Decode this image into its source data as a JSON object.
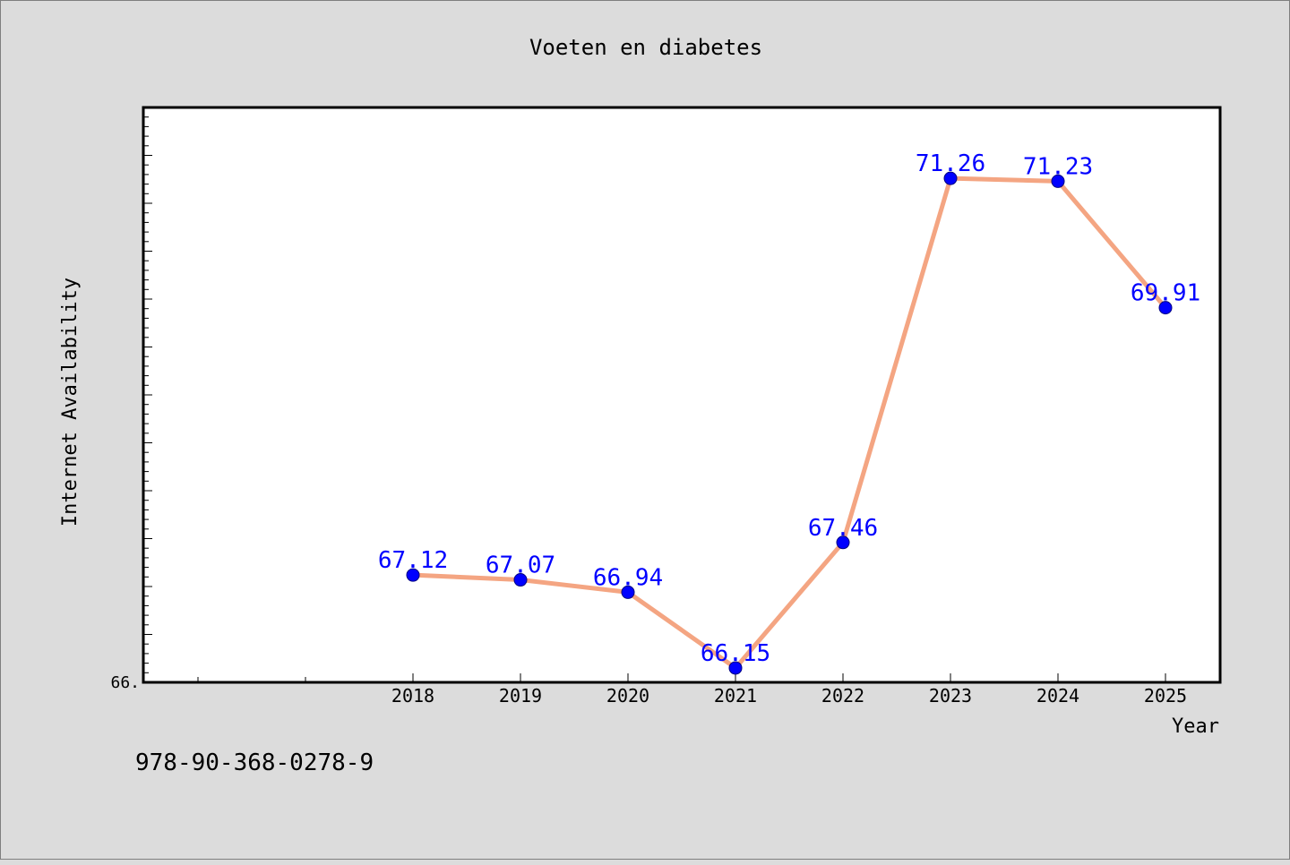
{
  "chart_data": {
    "type": "line",
    "title": "Voeten en diabetes",
    "xlabel": "Year",
    "ylabel": "Internet Availability",
    "x": [
      "2018",
      "2019",
      "2020",
      "2021",
      "2022",
      "2023",
      "2024",
      "2025"
    ],
    "series": [
      {
        "values": [
          67.12,
          67.07,
          66.94,
          66.15,
          67.46,
          71.26,
          71.23,
          69.91
        ],
        "data_labels": [
          "67.12",
          "67.07",
          "66.94",
          "66.15",
          "67.46",
          "71.26",
          "71.23",
          "69.91"
        ]
      }
    ],
    "y_tick_label": "66.",
    "ylim": [
      66.0,
      72.0
    ],
    "grid": false,
    "colors": {
      "line": "#f4a582",
      "marker": "#0000ff",
      "data_label": "#0000ff",
      "plot_background": "#ffffff",
      "page_background": "#dcdcdc"
    }
  },
  "footer": {
    "code": "978-90-368-0278-9"
  }
}
